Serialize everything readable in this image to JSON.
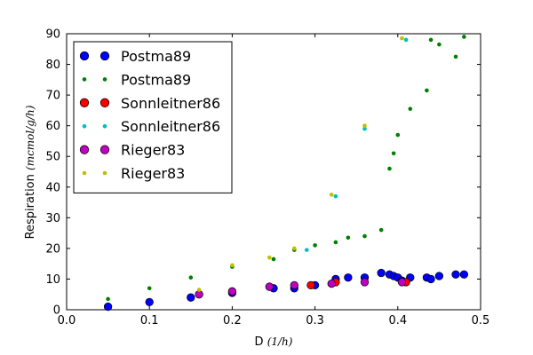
{
  "chart_data": {
    "type": "scatter",
    "xlabel": {
      "name": "D",
      "unit": "(1/h)"
    },
    "ylabel": {
      "name": "Respiration",
      "unit": "(mcmol/g/h)"
    },
    "xlim": [
      0,
      0.5
    ],
    "ylim": [
      0,
      90
    ],
    "x_ticks": [
      "0.0",
      "0.1",
      "0.2",
      "0.3",
      "0.4",
      "0.5"
    ],
    "y_ticks": [
      "0",
      "10",
      "20",
      "30",
      "40",
      "50",
      "60",
      "70",
      "80",
      "90"
    ],
    "grid": false,
    "legend_placement": "top-left",
    "series": [
      {
        "name": "Postma89",
        "marker": "large",
        "color": "#0000ff",
        "points": [
          [
            0.05,
            1.0
          ],
          [
            0.1,
            2.5
          ],
          [
            0.15,
            4.0
          ],
          [
            0.2,
            5.5
          ],
          [
            0.25,
            7.0
          ],
          [
            0.275,
            7.0
          ],
          [
            0.3,
            8.0
          ],
          [
            0.325,
            10.0
          ],
          [
            0.34,
            10.5
          ],
          [
            0.36,
            10.5
          ],
          [
            0.38,
            12.0
          ],
          [
            0.39,
            11.5
          ],
          [
            0.395,
            11.0
          ],
          [
            0.4,
            10.5
          ],
          [
            0.405,
            9.5
          ],
          [
            0.415,
            10.5
          ],
          [
            0.435,
            10.5
          ],
          [
            0.44,
            10.0
          ],
          [
            0.45,
            11.0
          ],
          [
            0.47,
            11.5
          ],
          [
            0.48,
            11.5
          ]
        ]
      },
      {
        "name": "Postma89",
        "marker": "small",
        "color": "#008000",
        "points": [
          [
            0.05,
            3.5
          ],
          [
            0.1,
            7.0
          ],
          [
            0.15,
            10.5
          ],
          [
            0.2,
            14.0
          ],
          [
            0.25,
            16.5
          ],
          [
            0.275,
            19.5
          ],
          [
            0.3,
            21.0
          ],
          [
            0.325,
            22.0
          ],
          [
            0.34,
            23.5
          ],
          [
            0.36,
            24.0
          ],
          [
            0.38,
            26.0
          ],
          [
            0.39,
            46.0
          ],
          [
            0.395,
            51.0
          ],
          [
            0.4,
            57.0
          ],
          [
            0.415,
            65.5
          ],
          [
            0.435,
            71.5
          ],
          [
            0.44,
            88.0
          ],
          [
            0.45,
            86.5
          ],
          [
            0.47,
            82.5
          ],
          [
            0.48,
            89.0
          ]
        ]
      },
      {
        "name": "Sonnleitner86",
        "marker": "large",
        "color": "#ff0000",
        "points": [
          [
            0.295,
            8.0
          ],
          [
            0.325,
            9.0
          ],
          [
            0.41,
            9.0
          ]
        ]
      },
      {
        "name": "Sonnleitner86",
        "marker": "small",
        "color": "#00bfbf",
        "points": [
          [
            0.29,
            19.5
          ],
          [
            0.325,
            37.0
          ],
          [
            0.36,
            59.0
          ],
          [
            0.41,
            88.0
          ]
        ]
      },
      {
        "name": "Rieger83",
        "marker": "large",
        "color": "#bf00bf",
        "points": [
          [
            0.16,
            5.0
          ],
          [
            0.2,
            6.0
          ],
          [
            0.245,
            7.5
          ],
          [
            0.275,
            8.0
          ],
          [
            0.32,
            8.5
          ],
          [
            0.36,
            9.0
          ],
          [
            0.405,
            9.0
          ]
        ]
      },
      {
        "name": "Rieger83",
        "marker": "small",
        "color": "#bfbf00",
        "points": [
          [
            0.16,
            6.5
          ],
          [
            0.2,
            14.5
          ],
          [
            0.245,
            17.0
          ],
          [
            0.275,
            20.0
          ],
          [
            0.32,
            37.5
          ],
          [
            0.36,
            60.0
          ],
          [
            0.405,
            88.5
          ]
        ]
      }
    ]
  }
}
